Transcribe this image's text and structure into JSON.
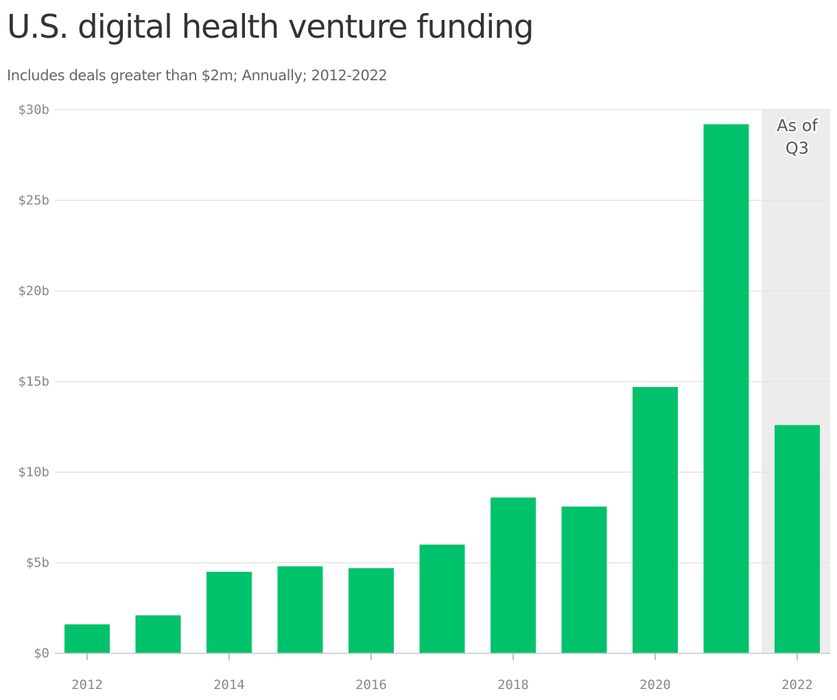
{
  "title": "U.S. digital health venture funding",
  "subtitle": "Includes deals greater than $2m; Annually; 2012-2022",
  "colors": {
    "bar": "#00c26b",
    "grid": "#e3e3e3",
    "shade": "#ececec",
    "axis_text": "#888888"
  },
  "chart_data": {
    "type": "bar",
    "categories": [
      "2012",
      "2013",
      "2014",
      "2015",
      "2016",
      "2017",
      "2018",
      "2019",
      "2020",
      "2021",
      "2022"
    ],
    "values": [
      1.6,
      2.1,
      4.5,
      4.8,
      4.7,
      6.0,
      8.6,
      8.1,
      14.7,
      29.2,
      12.6
    ],
    "unit": "billion USD",
    "ylim": [
      0,
      30
    ],
    "y_ticks": [
      0,
      5,
      10,
      15,
      20,
      25,
      30
    ],
    "y_tick_labels": [
      "$0",
      "$5b",
      "$10b",
      "$15b",
      "$20b",
      "$25b",
      "$30b"
    ],
    "x_tick_labels": [
      "2012",
      "2014",
      "2016",
      "2018",
      "2020",
      "2022"
    ],
    "grid": true,
    "annotation": {
      "category": "2022",
      "lines": [
        "As of",
        "Q3"
      ]
    }
  }
}
